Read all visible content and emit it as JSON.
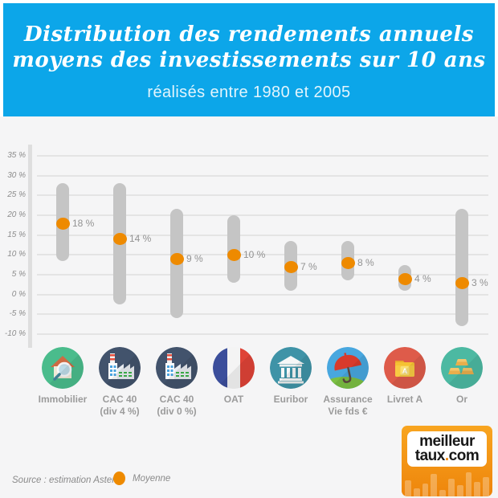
{
  "header": {
    "title_line1": "Distribution des rendements annuels",
    "title_line2": "moyens des investissements sur 10 ans",
    "subtitle": "réalisés entre 1980 et 2005"
  },
  "chart_data": {
    "type": "range-bar-with-mean-dot",
    "title": "Distribution des rendements annuels moyens des investissements sur 10 ans, réalisés entre 1980 et 2005",
    "unit": "%",
    "ylim": [
      -12.5,
      37.5
    ],
    "grid": true,
    "yticks": [
      {
        "v": 35,
        "label": "35 %"
      },
      {
        "v": 30,
        "label": "30 %"
      },
      {
        "v": 25,
        "label": "25 %"
      },
      {
        "v": 20,
        "label": "20 %"
      },
      {
        "v": 15,
        "label": "15 %"
      },
      {
        "v": 10,
        "label": "10 %"
      },
      {
        "v": 5,
        "label": "5 %"
      },
      {
        "v": 0,
        "label": "0 %"
      },
      {
        "v": -5,
        "label": "-5 %"
      },
      {
        "v": -10,
        "label": "-10 %"
      }
    ],
    "categories": [
      "Immobilier",
      "CAC 40\n(div 4 %)",
      "CAC 40\n(div 0 %)",
      "OAT",
      "Euribor",
      "Assurance\nVie fds €",
      "Livret A",
      "Or"
    ],
    "points": [
      {
        "category": "Immobilier",
        "min": 8.5,
        "max": 28,
        "mean": 18,
        "mean_label": "18 %"
      },
      {
        "category": "CAC 40 (div 4 %)",
        "min": -2.5,
        "max": 28,
        "mean": 14,
        "mean_label": "14 %"
      },
      {
        "category": "CAC 40 (div 0 %)",
        "min": -6,
        "max": 21.5,
        "mean": 9,
        "mean_label": "9 %"
      },
      {
        "category": "OAT",
        "min": 3,
        "max": 20,
        "mean": 10,
        "mean_label": "10 %"
      },
      {
        "category": "Euribor",
        "min": 1,
        "max": 13.5,
        "mean": 7,
        "mean_label": "7 %"
      },
      {
        "category": "Assurance Vie fds €",
        "min": 3.5,
        "max": 13.5,
        "mean": 8,
        "mean_label": "8 %"
      },
      {
        "category": "Livret A",
        "min": 1,
        "max": 7.5,
        "mean": 4,
        "mean_label": "4 %"
      },
      {
        "category": "Or",
        "min": -8,
        "max": 21.5,
        "mean": 3,
        "mean_label": "3 %"
      }
    ],
    "legend": {
      "label": "Moyenne",
      "position": "bottom-left"
    }
  },
  "icons": [
    {
      "name": "house-search-icon",
      "bg": "#4abc8c"
    },
    {
      "name": "factory-icon",
      "bg": "#42536c"
    },
    {
      "name": "factory-icon",
      "bg": "#42536c"
    },
    {
      "name": "french-flag-icon",
      "bg": "#f4f4f4"
    },
    {
      "name": "bank-icon",
      "bg": "#3f93a7"
    },
    {
      "name": "umbrella-icon",
      "bg": "#48a7df"
    },
    {
      "name": "folder-a-icon",
      "bg": "#de5b4a",
      "letter": "A"
    },
    {
      "name": "gold-bars-icon",
      "bg": "#4cb9a2"
    }
  ],
  "footer": {
    "source": "Source : estimation Asterès",
    "legend_label": "Moyenne"
  },
  "logo": {
    "line1": "meilleur",
    "line2_part1": "taux",
    "line2_dot": ".",
    "line2_part2": "com"
  },
  "colors": {
    "banner_bg": "#0ca6e9",
    "page_bg": "#f5f5f6",
    "bar": "#c5c5c5",
    "grid": "#e4e4e4",
    "axis": "#dedede",
    "accent_orange": "#ee8a00",
    "label_gray": "#9b9b9b",
    "tick_gray": "#8c8c8c",
    "logo_orange": "#ee850b"
  }
}
